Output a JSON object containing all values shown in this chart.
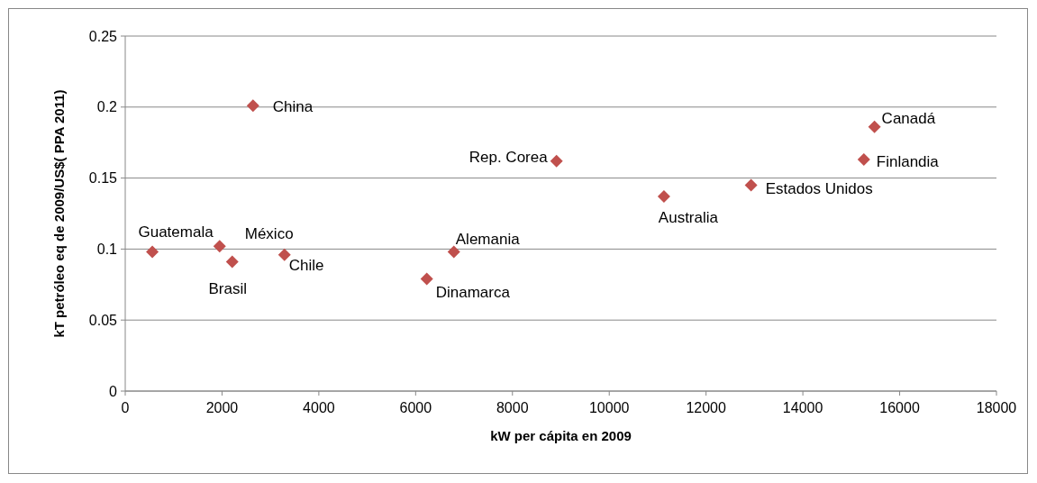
{
  "chart_data": {
    "type": "scatter",
    "xlabel": "kW per cápita en 2009",
    "ylabel": "kT petróleo eq de 2009/US$( PPA 2011)",
    "series": [
      {
        "color": "#c0504d",
        "x": [
          560,
          1950,
          2210,
          2640,
          3290,
          6230,
          6790,
          8910,
          11130,
          12930,
          15480,
          15260
        ],
        "values": [
          0.098,
          0.102,
          0.091,
          0.201,
          0.096,
          0.079,
          0.098,
          0.162,
          0.137,
          0.145,
          0.186,
          0.163
        ]
      }
    ],
    "annotations": [
      {
        "text": "Guatemala",
        "x": 560,
        "y": 0.098
      },
      {
        "text": "México",
        "x": 1950,
        "y": 0.102
      },
      {
        "text": "Brasil",
        "x": 2210,
        "y": 0.091
      },
      {
        "text": "China",
        "x": 2640,
        "y": 0.201
      },
      {
        "text": "Chile",
        "x": 3290,
        "y": 0.096
      },
      {
        "text": "Dinamarca",
        "x": 6230,
        "y": 0.079
      },
      {
        "text": "Alemania",
        "x": 6790,
        "y": 0.098
      },
      {
        "text": "Rep. Corea",
        "x": 8910,
        "y": 0.162
      },
      {
        "text": "Australia",
        "x": 11130,
        "y": 0.137
      },
      {
        "text": "Estados Unidos",
        "x": 12930,
        "y": 0.145
      },
      {
        "text": "Canadá",
        "x": 15480,
        "y": 0.186
      },
      {
        "text": "Finlandia",
        "x": 15260,
        "y": 0.163
      }
    ],
    "xlim": [
      0,
      18000
    ],
    "xticks": [
      0,
      2000,
      4000,
      6000,
      8000,
      10000,
      12000,
      14000,
      16000,
      18000
    ],
    "ylim": [
      0,
      0.25
    ],
    "yticks": [
      0,
      0.05,
      0.1,
      0.15,
      0.2,
      0.25
    ],
    "grid": "y",
    "marker": "diamond"
  }
}
